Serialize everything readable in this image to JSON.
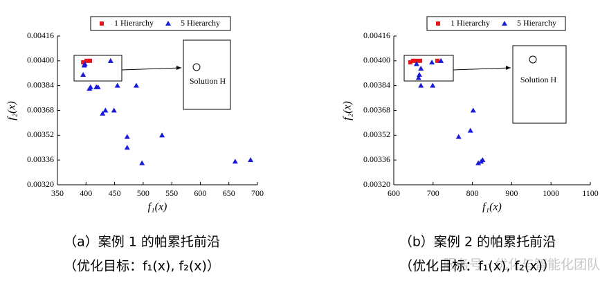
{
  "chart_data": [
    {
      "type": "scatter",
      "legend": "top",
      "series": [
        {
          "name": "1 Hierarchy",
          "color": "#e8141b",
          "marker": "square",
          "x": [
            395,
            401,
            407
          ],
          "values": [
            0.00399,
            0.004,
            0.004
          ]
        },
        {
          "name": "5 Hierarchy",
          "color": "#1a1adb",
          "marker": "triangle",
          "x": [
            395,
            397,
            398,
            406,
            408,
            418,
            421,
            443,
            455,
            488,
            429,
            434,
            449,
            472,
            472,
            498,
            533,
            661,
            688
          ],
          "values": [
            0.00391,
            0.00397,
            0.00398,
            0.00382,
            0.00383,
            0.00383,
            0.00383,
            0.004,
            0.00384,
            0.00384,
            0.00366,
            0.00368,
            0.00368,
            0.00351,
            0.00344,
            0.00334,
            0.00352,
            0.00335,
            0.00336
          ]
        }
      ],
      "xlim": [
        350,
        700
      ],
      "xticks": [
        350,
        400,
        450,
        500,
        550,
        600,
        650,
        700
      ],
      "ylim": [
        0.0032,
        0.00416
      ],
      "yticks": [
        {
          "value": 0.0032,
          "label": "0.00320"
        },
        0.00336,
        0.00352,
        0.00368,
        0.00384,
        {
          "value": 0.004,
          "label": "0.00400"
        },
        0.00416
      ],
      "x_label": "f₁(x)",
      "y_label": "f₂(x)",
      "annotation": "Solution H",
      "caption": "（a）案例 1 的帕累托前沿",
      "caption2": "（优化目标：f₁(x), f₂(x)）"
    },
    {
      "type": "scatter",
      "legend": "top",
      "series": [
        {
          "name": "1 Hierarchy",
          "color": "#e8141b",
          "marker": "square",
          "x": [
            642,
            649,
            658,
            667,
            711
          ],
          "values": [
            0.00399,
            0.004,
            0.004,
            0.004,
            0.004
          ]
        },
        {
          "name": "5 Hierarchy",
          "color": "#1a1adb",
          "marker": "triangle",
          "x": [
            658,
            665,
            663,
            669,
            669,
            699,
            697,
            720,
            802,
            795,
            765,
            815,
            822,
            826
          ],
          "values": [
            0.00398,
            0.00391,
            0.00389,
            0.00395,
            0.00384,
            0.00384,
            0.00399,
            0.004,
            0.00368,
            0.00355,
            0.00351,
            0.00334,
            0.00335,
            0.00336
          ]
        }
      ],
      "xlim": [
        600,
        1100
      ],
      "xticks": [
        600,
        700,
        800,
        900,
        1000,
        1100
      ],
      "ylim": [
        0.0032,
        0.00416
      ],
      "yticks": [
        {
          "value": 0.0032,
          "label": "0.00320"
        },
        0.00336,
        0.00352,
        0.00368,
        0.00384,
        {
          "value": 0.004,
          "label": "0.00400"
        },
        0.00416
      ],
      "x_label": "f₁(x)",
      "y_label": "f₂(x)",
      "annotation": "Solution H",
      "caption": "（b）案例 2 的帕累托前沿",
      "caption2": "（优化目标：f₁(x), f₂(x)）"
    }
  ],
  "watermark": "服务号 · 优化与智能化团队"
}
